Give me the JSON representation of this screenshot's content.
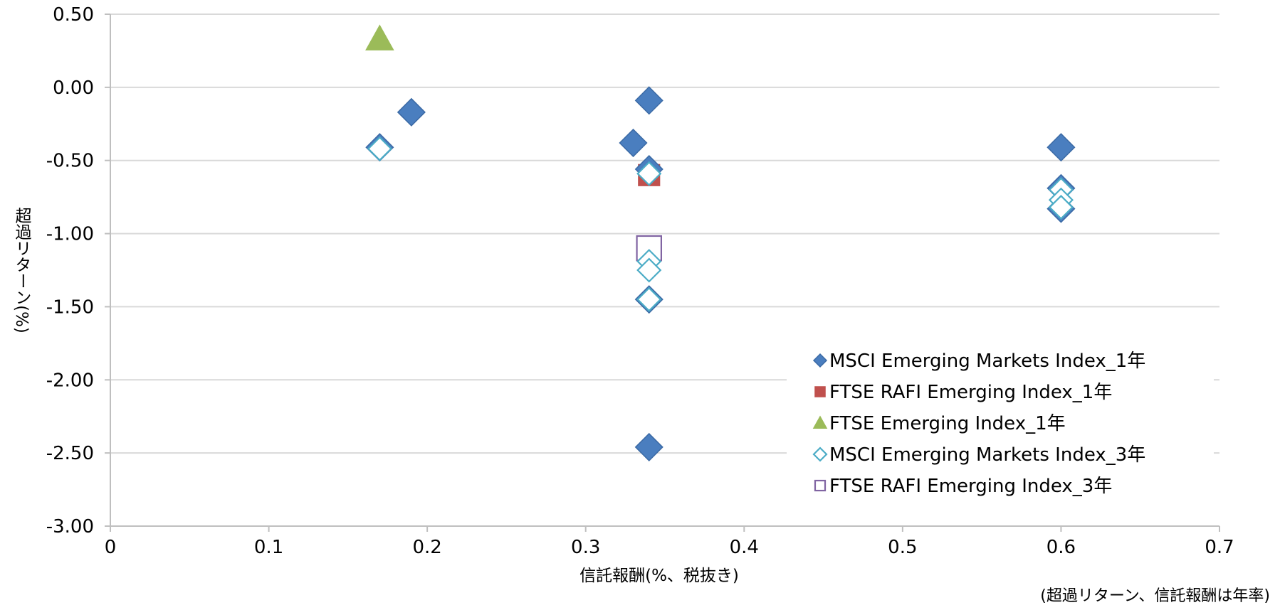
{
  "chart_data": {
    "type": "scatter",
    "title": "",
    "xlabel": "信託報酬(%、税抜き)",
    "ylabel": "超過リターン(%)",
    "xlim": [
      0,
      0.7
    ],
    "ylim": [
      -3.0,
      0.5
    ],
    "x_ticks": [
      "0",
      "0.1",
      "0.2",
      "0.3",
      "0.4",
      "0.5",
      "0.6",
      "0.7"
    ],
    "y_ticks": [
      "0.50",
      "0.00",
      "-0.50",
      "-1.00",
      "-1.50",
      "-2.00",
      "-2.50",
      "-3.00"
    ],
    "grid": "horizontal",
    "legend_position": "bottom-right",
    "series": [
      {
        "name": "MSCI Emerging Markets Index_1年",
        "marker": "diamond-filled",
        "color": "#4a7ebf",
        "points": [
          [
            0.17,
            -0.41
          ],
          [
            0.19,
            -0.17
          ],
          [
            0.33,
            -0.38
          ],
          [
            0.34,
            -0.09
          ],
          [
            0.34,
            -0.56
          ],
          [
            0.34,
            -1.45
          ],
          [
            0.34,
            -2.46
          ],
          [
            0.6,
            -0.41
          ],
          [
            0.6,
            -0.69
          ],
          [
            0.6,
            -0.83
          ]
        ]
      },
      {
        "name": "FTSE RAFI Emerging Index_1年",
        "marker": "square-filled",
        "color": "#c0504d",
        "points": [
          [
            0.34,
            -0.6
          ]
        ]
      },
      {
        "name": "FTSE Emerging Index_1年",
        "marker": "triangle-filled",
        "color": "#9bbb59",
        "points": [
          [
            0.17,
            0.33
          ]
        ]
      },
      {
        "name": "MSCI Emerging Markets Index_3年",
        "marker": "diamond-open",
        "color": "#4bacc6",
        "points": [
          [
            0.17,
            -0.42
          ],
          [
            0.34,
            -0.59
          ],
          [
            0.34,
            -1.19
          ],
          [
            0.34,
            -1.25
          ],
          [
            0.34,
            -1.45
          ],
          [
            0.6,
            -0.7
          ],
          [
            0.6,
            -0.77
          ],
          [
            0.6,
            -0.82
          ]
        ]
      },
      {
        "name": "FTSE RAFI Emerging Index_3年",
        "marker": "square-open",
        "color": "#8064a2",
        "points": [
          [
            0.34,
            -1.1
          ]
        ]
      }
    ]
  },
  "footnote": "(超過リターン、信託報酬は年率)"
}
